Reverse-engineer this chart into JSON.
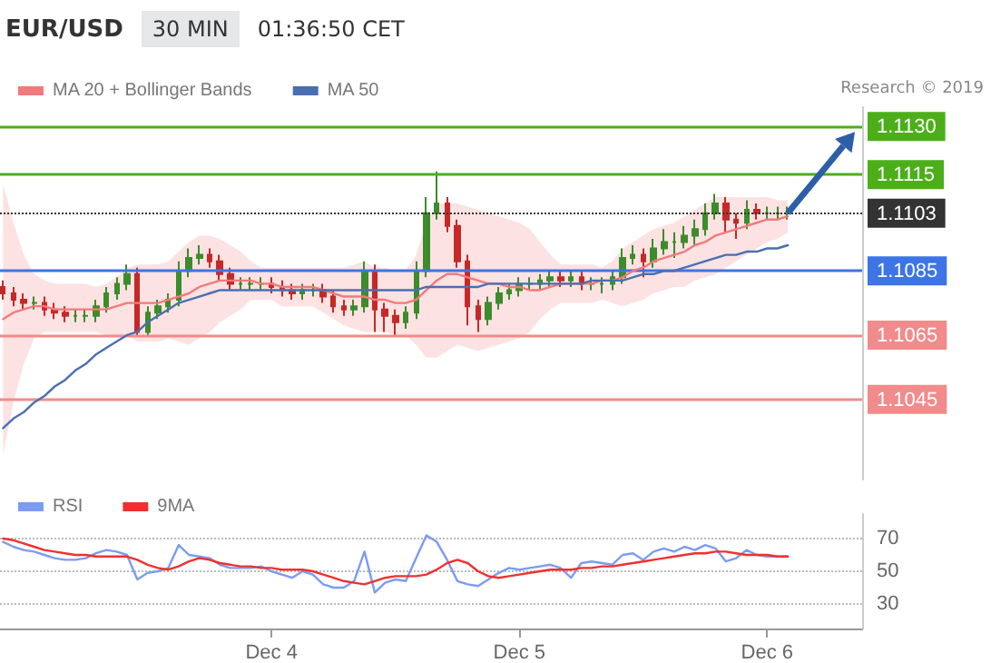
{
  "chart_data": [
    {
      "type": "candlestick",
      "title": "EUR/USD",
      "subtitle": "30 MIN",
      "annotations": [
        "01:36:50 CET",
        "Research © 2019"
      ],
      "x": [
        "2019-12-02T22:00",
        "2019-12-02T23:00",
        "2019-12-03T00:00",
        "2019-12-03T01:00",
        "2019-12-03T02:00",
        "2019-12-03T03:00",
        "2019-12-03T04:00",
        "2019-12-03T05:00",
        "2019-12-03T06:00",
        "2019-12-03T07:00",
        "2019-12-03T08:00",
        "2019-12-03T09:00",
        "2019-12-03T10:00",
        "2019-12-03T11:00",
        "2019-12-03T12:00",
        "2019-12-03T13:00",
        "2019-12-03T14:00",
        "2019-12-03T15:00",
        "2019-12-03T16:00",
        "2019-12-03T17:00",
        "2019-12-03T18:00",
        "2019-12-03T19:00",
        "2019-12-03T20:00",
        "2019-12-03T21:00",
        "2019-12-03T22:00",
        "2019-12-03T23:00",
        "2019-12-04T00:00",
        "2019-12-04T01:00",
        "2019-12-04T02:00",
        "2019-12-04T03:00",
        "2019-12-04T04:00",
        "2019-12-04T05:00",
        "2019-12-04T06:00",
        "2019-12-04T07:00",
        "2019-12-04T08:00",
        "2019-12-04T09:00",
        "2019-12-04T10:00",
        "2019-12-04T11:00",
        "2019-12-04T12:00",
        "2019-12-04T13:00",
        "2019-12-04T14:00",
        "2019-12-04T15:00",
        "2019-12-04T16:00",
        "2019-12-04T17:00",
        "2019-12-04T18:00",
        "2019-12-04T19:00",
        "2019-12-04T20:00",
        "2019-12-04T21:00",
        "2019-12-04T22:00",
        "2019-12-04T23:00",
        "2019-12-05T00:00",
        "2019-12-05T01:00",
        "2019-12-05T02:00",
        "2019-12-05T03:00",
        "2019-12-05T04:00",
        "2019-12-05T05:00",
        "2019-12-05T06:00",
        "2019-12-05T07:00",
        "2019-12-05T08:00",
        "2019-12-05T09:00",
        "2019-12-05T10:00",
        "2019-12-05T11:00",
        "2019-12-05T12:00",
        "2019-12-05T13:00",
        "2019-12-05T14:00",
        "2019-12-05T15:00",
        "2019-12-05T16:00",
        "2019-12-05T17:00",
        "2019-12-05T18:00",
        "2019-12-05T19:00",
        "2019-12-05T20:00",
        "2019-12-05T21:00",
        "2019-12-05T22:00",
        "2019-12-05T23:00",
        "2019-12-06T00:00",
        "2019-12-06T01:00",
        "2019-12-06T02:00"
      ],
      "ohlc": [
        [
          1.108,
          1.1082,
          1.1076,
          1.1078
        ],
        [
          1.1078,
          1.108,
          1.1074,
          1.1076
        ],
        [
          1.1076,
          1.1078,
          1.1073,
          1.1075
        ],
        [
          1.1075,
          1.1077,
          1.1073,
          1.1075
        ],
        [
          1.1075,
          1.1077,
          1.1071,
          1.1073
        ],
        [
          1.1073,
          1.1075,
          1.107,
          1.1072
        ],
        [
          1.1072,
          1.1074,
          1.1069,
          1.1071
        ],
        [
          1.1071,
          1.1073,
          1.1069,
          1.1071
        ],
        [
          1.1071,
          1.1073,
          1.1069,
          1.1071
        ],
        [
          1.1071,
          1.1076,
          1.1069,
          1.1074
        ],
        [
          1.1074,
          1.108,
          1.1072,
          1.1078
        ],
        [
          1.1078,
          1.1083,
          1.1076,
          1.1081
        ],
        [
          1.1081,
          1.1087,
          1.1079,
          1.1084
        ],
        [
          1.1084,
          1.1086,
          1.1065,
          1.1066
        ],
        [
          1.1066,
          1.1074,
          1.1065,
          1.1072
        ],
        [
          1.1072,
          1.1076,
          1.107,
          1.1074
        ],
        [
          1.1074,
          1.1078,
          1.1072,
          1.1076
        ],
        [
          1.1076,
          1.1088,
          1.1074,
          1.1085
        ],
        [
          1.1085,
          1.1092,
          1.1083,
          1.1089
        ],
        [
          1.1089,
          1.1093,
          1.1087,
          1.109
        ],
        [
          1.109,
          1.1092,
          1.1086,
          1.1088
        ],
        [
          1.1088,
          1.109,
          1.1082,
          1.1084
        ],
        [
          1.1084,
          1.1086,
          1.1079,
          1.1081
        ],
        [
          1.1081,
          1.1083,
          1.1079,
          1.1081
        ],
        [
          1.1081,
          1.1083,
          1.1079,
          1.1081
        ],
        [
          1.1081,
          1.1083,
          1.1079,
          1.1081
        ],
        [
          1.1081,
          1.1083,
          1.1078,
          1.108
        ],
        [
          1.108,
          1.1082,
          1.1077,
          1.1079
        ],
        [
          1.1079,
          1.1081,
          1.1076,
          1.1078
        ],
        [
          1.1078,
          1.1081,
          1.1076,
          1.1079
        ],
        [
          1.1079,
          1.1081,
          1.1077,
          1.1079
        ],
        [
          1.1079,
          1.1081,
          1.1075,
          1.1077
        ],
        [
          1.1077,
          1.1079,
          1.1072,
          1.1074
        ],
        [
          1.1074,
          1.1076,
          1.1071,
          1.1073
        ],
        [
          1.1073,
          1.1076,
          1.1071,
          1.1074
        ],
        [
          1.1074,
          1.1088,
          1.1072,
          1.1085
        ],
        [
          1.1085,
          1.1087,
          1.1066,
          1.1073
        ],
        [
          1.1073,
          1.1075,
          1.1066,
          1.1071
        ],
        [
          1.1071,
          1.1073,
          1.1065,
          1.1069
        ],
        [
          1.1069,
          1.1074,
          1.1067,
          1.1072
        ],
        [
          1.1072,
          1.1088,
          1.107,
          1.1085
        ],
        [
          1.1085,
          1.1108,
          1.1083,
          1.1103
        ],
        [
          1.1103,
          1.1116,
          1.1101,
          1.1106
        ],
        [
          1.1106,
          1.1108,
          1.1097,
          1.1099
        ],
        [
          1.1099,
          1.1101,
          1.1086,
          1.1088
        ],
        [
          1.1088,
          1.109,
          1.1068,
          1.1074
        ],
        [
          1.1074,
          1.1076,
          1.1066,
          1.107
        ],
        [
          1.107,
          1.1077,
          1.1068,
          1.1075
        ],
        [
          1.1075,
          1.108,
          1.1073,
          1.1078
        ],
        [
          1.1078,
          1.1081,
          1.1076,
          1.1079
        ],
        [
          1.1079,
          1.1083,
          1.1077,
          1.1081
        ],
        [
          1.1081,
          1.1083,
          1.1079,
          1.1081
        ],
        [
          1.1081,
          1.1084,
          1.1079,
          1.1082
        ],
        [
          1.1082,
          1.1085,
          1.108,
          1.1083
        ],
        [
          1.1083,
          1.1085,
          1.108,
          1.1082
        ],
        [
          1.1082,
          1.1085,
          1.108,
          1.1083
        ],
        [
          1.1083,
          1.1085,
          1.1079,
          1.1081
        ],
        [
          1.1081,
          1.1083,
          1.1079,
          1.1081
        ],
        [
          1.1081,
          1.1083,
          1.1078,
          1.1081
        ],
        [
          1.1081,
          1.1085,
          1.1079,
          1.1083
        ],
        [
          1.1083,
          1.1092,
          1.1081,
          1.1089
        ],
        [
          1.1089,
          1.1093,
          1.1087,
          1.109
        ],
        [
          1.109,
          1.1092,
          1.1083,
          1.1088
        ],
        [
          1.1088,
          1.1095,
          1.1086,
          1.1092
        ],
        [
          1.1092,
          1.1098,
          1.109,
          1.1094
        ],
        [
          1.1094,
          1.1097,
          1.1089,
          1.1094
        ],
        [
          1.1094,
          1.1099,
          1.1092,
          1.1096
        ],
        [
          1.1096,
          1.1101,
          1.1093,
          1.1098
        ],
        [
          1.1098,
          1.1106,
          1.1096,
          1.1103
        ],
        [
          1.1103,
          1.1109,
          1.1101,
          1.1106
        ],
        [
          1.1106,
          1.1108,
          1.1097,
          1.1101
        ],
        [
          1.1101,
          1.1103,
          1.1095,
          1.11
        ],
        [
          1.11,
          1.1107,
          1.1098,
          1.1104
        ],
        [
          1.1104,
          1.1106,
          1.1101,
          1.1103
        ],
        [
          1.1103,
          1.1105,
          1.1101,
          1.1103
        ],
        [
          1.1103,
          1.1105,
          1.1101,
          1.1103
        ],
        [
          1.1103,
          1.1105,
          1.1101,
          1.1103
        ]
      ],
      "colors": [
        "#c62828",
        "#c62828",
        "#c62828",
        "#3c8c2c",
        "#c62828",
        "#c62828",
        "#c62828",
        "#3c8c2c",
        "#3c8c2c",
        "#3c8c2c",
        "#3c8c2c",
        "#3c8c2c",
        "#3c8c2c",
        "#c62828",
        "#3c8c2c",
        "#3c8c2c",
        "#3c8c2c",
        "#3c8c2c",
        "#3c8c2c",
        "#3c8c2c",
        "#c62828",
        "#c62828",
        "#c62828",
        "#3c8c2c",
        "#3c8c2c",
        "#3c8c2c",
        "#c62828",
        "#c62828",
        "#c62828",
        "#3c8c2c",
        "#3c8c2c",
        "#c62828",
        "#c62828",
        "#c62828",
        "#3c8c2c",
        "#3c8c2c",
        "#c62828",
        "#c62828",
        "#c62828",
        "#3c8c2c",
        "#3c8c2c",
        "#3c8c2c",
        "#3c8c2c",
        "#c62828",
        "#c62828",
        "#c62828",
        "#c62828",
        "#3c8c2c",
        "#3c8c2c",
        "#3c8c2c",
        "#3c8c2c",
        "#3c8c2c",
        "#3c8c2c",
        "#3c8c2c",
        "#c62828",
        "#3c8c2c",
        "#c62828",
        "#3c8c2c",
        "#3c8c2c",
        "#3c8c2c",
        "#3c8c2c",
        "#3c8c2c",
        "#c62828",
        "#3c8c2c",
        "#3c8c2c",
        "#3c8c2c",
        "#3c8c2c",
        "#3c8c2c",
        "#3c8c2c",
        "#3c8c2c",
        "#c62828",
        "#c62828",
        "#3c8c2c",
        "#c62828",
        "#3c8c2c",
        "#3c8c2c",
        "#3c8c2c"
      ],
      "series": [
        {
          "name": "MA 20 + Bollinger Bands",
          "type": "line",
          "color": "#f27a7a",
          "values": [
            1.107,
            1.1072,
            1.1073,
            1.1074,
            1.1074,
            1.1073,
            1.1073,
            1.1073,
            1.1073,
            1.1073,
            1.1073,
            1.1074,
            1.1075,
            1.1075,
            1.1075,
            1.1075,
            1.1076,
            1.1077,
            1.1078,
            1.108,
            1.1081,
            1.1082,
            1.1082,
            1.1082,
            1.1082,
            1.1081,
            1.1081,
            1.108,
            1.108,
            1.108,
            1.108,
            1.1079,
            1.1078,
            1.1077,
            1.1077,
            1.1077,
            1.1076,
            1.1076,
            1.1075,
            1.1075,
            1.1076,
            1.1079,
            1.1082,
            1.1084,
            1.1084,
            1.1083,
            1.1082,
            1.1081,
            1.1081,
            1.108,
            1.108,
            1.1079,
            1.1079,
            1.108,
            1.1081,
            1.1081,
            1.1081,
            1.1081,
            1.1082,
            1.1082,
            1.1083,
            1.1085,
            1.1086,
            1.1088,
            1.1089,
            1.109,
            1.1091,
            1.1093,
            1.1094,
            1.1096,
            1.1097,
            1.1098,
            1.1099,
            1.11,
            1.1101,
            1.1101,
            1.1102
          ],
          "upper": [
            1.1112,
            1.11,
            1.109,
            1.1084,
            1.1082,
            1.1081,
            1.1081,
            1.1081,
            1.1081,
            1.108,
            1.1081,
            1.1083,
            1.1086,
            1.1087,
            1.1087,
            1.1087,
            1.1088,
            1.1091,
            1.1094,
            1.1096,
            1.1096,
            1.1095,
            1.1093,
            1.1091,
            1.1088,
            1.1086,
            1.1086,
            1.1086,
            1.1086,
            1.1086,
            1.1086,
            1.1086,
            1.1086,
            1.1086,
            1.1087,
            1.1088,
            1.1086,
            1.1086,
            1.1085,
            1.1085,
            1.109,
            1.11,
            1.1106,
            1.1106,
            1.1106,
            1.1105,
            1.1104,
            1.1103,
            1.1102,
            1.1101,
            1.11,
            1.1098,
            1.1094,
            1.109,
            1.1087,
            1.1087,
            1.1087,
            1.1087,
            1.1086,
            1.1088,
            1.1092,
            1.1094,
            1.1096,
            1.1098,
            1.1099,
            1.11,
            1.1102,
            1.1104,
            1.1106,
            1.1108,
            1.1108,
            1.1108,
            1.1108,
            1.1108,
            1.1108,
            1.1107,
            1.1107
          ],
          "lower": [
            1.1028,
            1.1044,
            1.1056,
            1.1064,
            1.1066,
            1.1066,
            1.1066,
            1.1066,
            1.1066,
            1.1066,
            1.1065,
            1.1065,
            1.1065,
            1.1063,
            1.1063,
            1.1063,
            1.1064,
            1.1063,
            1.1062,
            1.1064,
            1.1066,
            1.1069,
            1.1071,
            1.1073,
            1.1076,
            1.1076,
            1.1076,
            1.1074,
            1.1074,
            1.1074,
            1.1074,
            1.1072,
            1.107,
            1.1068,
            1.1067,
            1.1066,
            1.1066,
            1.1066,
            1.1065,
            1.1065,
            1.1062,
            1.1058,
            1.1058,
            1.106,
            1.1062,
            1.1061,
            1.106,
            1.1061,
            1.1062,
            1.1063,
            1.1064,
            1.1066,
            1.107,
            1.1073,
            1.1075,
            1.1075,
            1.1075,
            1.1075,
            1.1076,
            1.1075,
            1.1074,
            1.1075,
            1.1076,
            1.1078,
            1.1079,
            1.108,
            1.108,
            1.1082,
            1.1083,
            1.1084,
            1.1086,
            1.1088,
            1.109,
            1.1092,
            1.1094,
            1.1095,
            1.1097
          ]
        },
        {
          "name": "MA 50",
          "type": "line",
          "color": "#4a6fb0",
          "values": [
            1.1036,
            1.1039,
            1.1041,
            1.1044,
            1.1046,
            1.1049,
            1.1051,
            1.1054,
            1.1056,
            1.1059,
            1.1061,
            1.1063,
            1.1065,
            1.1066,
            1.1069,
            1.1071,
            1.1073,
            1.1075,
            1.1076,
            1.1077,
            1.1078,
            1.1079,
            1.1079,
            1.1079,
            1.1079,
            1.1079,
            1.1079,
            1.1079,
            1.1079,
            1.1079,
            1.1079,
            1.1079,
            1.1079,
            1.1079,
            1.1079,
            1.1079,
            1.1079,
            1.1079,
            1.1079,
            1.1079,
            1.1079,
            1.108,
            1.108,
            1.108,
            1.108,
            1.108,
            1.108,
            1.1081,
            1.1081,
            1.1081,
            1.1081,
            1.1081,
            1.1081,
            1.1081,
            1.1081,
            1.1081,
            1.1081,
            1.1082,
            1.1082,
            1.1082,
            1.1082,
            1.1083,
            1.1084,
            1.1084,
            1.1085,
            1.1085,
            1.1086,
            1.1087,
            1.1088,
            1.1089,
            1.109,
            1.109,
            1.1091,
            1.1091,
            1.1092,
            1.1092,
            1.1093
          ]
        }
      ],
      "xlim": [
        "2019-12-02T21:42",
        "2019-12-06T09:12"
      ],
      "ylim": [
        1.102,
        1.1136
      ],
      "yticks": [
        {
          "value": 1.1045,
          "label": "1.1045"
        },
        {
          "value": 1.1065,
          "label": "1.1065"
        },
        {
          "value": 1.1085,
          "label": "1.1085"
        },
        {
          "value": 1.1103,
          "label": "1.1103"
        },
        {
          "value": 1.1115,
          "label": "1.1115"
        },
        {
          "value": 1.113,
          "label": "1.1130"
        }
      ],
      "tick_labels": "y",
      "legend": "top left",
      "marker": "none",
      "ref_lines": [
        {
          "axis": "y",
          "value": 1.113,
          "color": "#4caf1a"
        },
        {
          "axis": "y",
          "value": 1.1115,
          "color": "#4caf1a"
        },
        {
          "axis": "y",
          "value": 1.1103,
          "color": "#333333",
          "line_style": "dotted"
        },
        {
          "axis": "y",
          "value": 1.1085,
          "color": "#3d74e6"
        },
        {
          "axis": "y",
          "value": 1.1065,
          "color": "#f28b8b"
        },
        {
          "axis": "y",
          "value": 1.1045,
          "color": "#f28b8b"
        }
      ]
    },
    {
      "type": "line",
      "x": [
        "2019-12-02T22:00",
        "2019-12-02T23:00",
        "2019-12-03T00:00",
        "2019-12-03T01:00",
        "2019-12-03T02:00",
        "2019-12-03T03:00",
        "2019-12-03T04:00",
        "2019-12-03T05:00",
        "2019-12-03T06:00",
        "2019-12-03T07:00",
        "2019-12-03T08:00",
        "2019-12-03T09:00",
        "2019-12-03T10:00",
        "2019-12-03T11:00",
        "2019-12-03T12:00",
        "2019-12-03T13:00",
        "2019-12-03T14:00",
        "2019-12-03T15:00",
        "2019-12-03T16:00",
        "2019-12-03T17:00",
        "2019-12-03T18:00",
        "2019-12-03T19:00",
        "2019-12-03T20:00",
        "2019-12-03T21:00",
        "2019-12-03T22:00",
        "2019-12-03T23:00",
        "2019-12-04T00:00",
        "2019-12-04T01:00",
        "2019-12-04T02:00",
        "2019-12-04T03:00",
        "2019-12-04T04:00",
        "2019-12-04T05:00",
        "2019-12-04T06:00",
        "2019-12-04T07:00",
        "2019-12-04T08:00",
        "2019-12-04T09:00",
        "2019-12-04T10:00",
        "2019-12-04T11:00",
        "2019-12-04T12:00",
        "2019-12-04T13:00",
        "2019-12-04T14:00",
        "2019-12-04T15:00",
        "2019-12-04T16:00",
        "2019-12-04T17:00",
        "2019-12-04T18:00",
        "2019-12-04T19:00",
        "2019-12-04T20:00",
        "2019-12-04T21:00",
        "2019-12-04T22:00",
        "2019-12-04T23:00",
        "2019-12-05T00:00",
        "2019-12-05T01:00",
        "2019-12-05T02:00",
        "2019-12-05T03:00",
        "2019-12-05T04:00",
        "2019-12-05T05:00",
        "2019-12-05T06:00",
        "2019-12-05T07:00",
        "2019-12-05T08:00",
        "2019-12-05T09:00",
        "2019-12-05T10:00",
        "2019-12-05T11:00",
        "2019-12-05T12:00",
        "2019-12-05T13:00",
        "2019-12-05T14:00",
        "2019-12-05T15:00",
        "2019-12-05T16:00",
        "2019-12-05T17:00",
        "2019-12-05T18:00",
        "2019-12-05T19:00",
        "2019-12-05T20:00",
        "2019-12-05T21:00",
        "2019-12-05T22:00",
        "2019-12-05T23:00",
        "2019-12-06T00:00",
        "2019-12-06T01:00",
        "2019-12-06T02:00"
      ],
      "series": [
        {
          "name": "RSI",
          "color": "#7b9cf0",
          "values": [
            68,
            65,
            63,
            62,
            60,
            58,
            57,
            57,
            58,
            61,
            63,
            62,
            60,
            45,
            49,
            50,
            52,
            66,
            60,
            59,
            58,
            54,
            52,
            52,
            52,
            53,
            50,
            48,
            46,
            50,
            48,
            42,
            40,
            40,
            44,
            62,
            37,
            43,
            45,
            44,
            58,
            72,
            68,
            57,
            44,
            42,
            41,
            45,
            49,
            52,
            51,
            52,
            53,
            54,
            52,
            46,
            55,
            56,
            55,
            54,
            60,
            61,
            57,
            62,
            64,
            62,
            65,
            63,
            66,
            64,
            56,
            58,
            63,
            60,
            59,
            59,
            59
          ]
        },
        {
          "name": "9MA",
          "color": "#f03030",
          "values": [
            70,
            69,
            67,
            65,
            63,
            62,
            61,
            60,
            60,
            59,
            59,
            59,
            59,
            57,
            54,
            52,
            51,
            53,
            56,
            58,
            57,
            55,
            54,
            53,
            53,
            52,
            52,
            51,
            51,
            51,
            50,
            48,
            46,
            44,
            43,
            42,
            44,
            46,
            47,
            47,
            47,
            48,
            51,
            55,
            57,
            55,
            50,
            47,
            46,
            47,
            48,
            49,
            50,
            51,
            51,
            51,
            52,
            52,
            53,
            53,
            54,
            55,
            56,
            57,
            58,
            59,
            60,
            61,
            61,
            62,
            62,
            61,
            60,
            60,
            60,
            59,
            59
          ]
        }
      ],
      "xlim": [
        "2019-12-02T21:42",
        "2019-12-06T09:12"
      ],
      "xticks": [
        {
          "value": "2019-12-04",
          "label": "Dec 4"
        },
        {
          "value": "2019-12-05",
          "label": "Dec 5"
        },
        {
          "value": "2019-12-06",
          "label": "Dec 6"
        }
      ],
      "ylim": [
        15,
        85
      ],
      "yticks": [
        30,
        50,
        70
      ],
      "grid": "y",
      "legend": "top left",
      "marker": "none"
    }
  ]
}
